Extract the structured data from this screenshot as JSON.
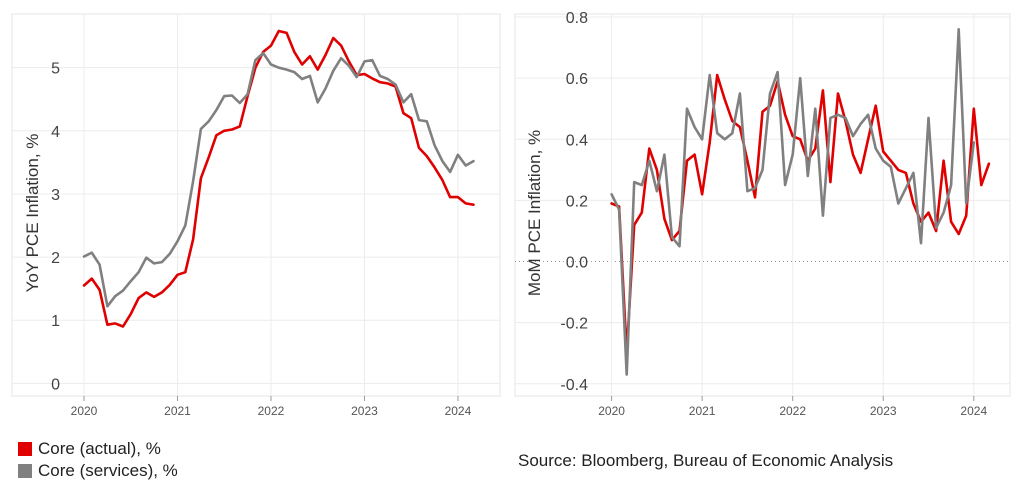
{
  "colors": {
    "actual": "#e00000",
    "services": "#808080"
  },
  "legend": [
    {
      "label": "Core (actual), %",
      "color": "#e00000"
    },
    {
      "label": "Core (services), %",
      "color": "#808080"
    }
  ],
  "source": "Source: Bloomberg, Bureau of Economic Analysis",
  "chart_data": [
    {
      "type": "line",
      "ylabel": "YoY PCE Inflation, %",
      "xlabel": "",
      "ylim": [
        -0.2,
        5.85
      ],
      "yticks": [
        0,
        1,
        2,
        3,
        4,
        5
      ],
      "xlim": [
        2019.85,
        2024.45
      ],
      "xticks": [
        "2020",
        "2021",
        "2022",
        "2023",
        "2024"
      ],
      "grid": true,
      "start": 2020.0,
      "step": 0.0833333,
      "series": [
        {
          "name": "Core (actual), %",
          "color": "#e00000",
          "values": [
            1.55,
            1.66,
            1.48,
            0.93,
            0.95,
            0.9,
            1.1,
            1.35,
            1.44,
            1.37,
            1.44,
            1.56,
            1.72,
            1.76,
            2.28,
            3.25,
            3.58,
            3.93,
            4.0,
            4.02,
            4.07,
            4.55,
            5.0,
            5.25,
            5.35,
            5.58,
            5.55,
            5.25,
            5.05,
            5.18,
            4.97,
            5.2,
            5.47,
            5.35,
            5.1,
            4.88,
            4.9,
            4.83,
            4.77,
            4.75,
            4.7,
            4.28,
            4.2,
            3.73,
            3.6,
            3.42,
            3.22,
            2.95,
            2.95,
            2.85,
            2.83
          ]
        },
        {
          "name": "Core (services), %",
          "color": "#808080",
          "values": [
            2.01,
            2.07,
            1.88,
            1.22,
            1.38,
            1.47,
            1.62,
            1.76,
            1.99,
            1.9,
            1.92,
            2.05,
            2.25,
            2.5,
            3.2,
            4.03,
            4.15,
            4.33,
            4.55,
            4.56,
            4.44,
            4.58,
            5.12,
            5.23,
            5.05,
            5.0,
            4.97,
            4.93,
            4.82,
            4.87,
            4.45,
            4.67,
            4.95,
            5.15,
            5.03,
            4.85,
            5.1,
            5.12,
            4.87,
            4.82,
            4.73,
            4.45,
            4.58,
            4.17,
            4.15,
            3.77,
            3.52,
            3.35,
            3.62,
            3.45,
            3.52
          ]
        }
      ]
    },
    {
      "type": "line",
      "ylabel": "MoM PCE Inflation, %",
      "xlabel": "",
      "ylim": [
        -0.44,
        0.81
      ],
      "yticks": [
        -0.4,
        -0.2,
        0.0,
        0.2,
        0.4,
        0.6,
        0.8
      ],
      "ytick_labels": [
        "-0.4",
        "-0.2",
        "0.0",
        "0.2",
        "0.4",
        "0.6",
        "0.8"
      ],
      "zero_line": true,
      "xlim": [
        2019.85,
        2024.4
      ],
      "xticks": [
        "2020",
        "2021",
        "2022",
        "2023",
        "2024"
      ],
      "grid": true,
      "start": 2020.0,
      "step": 0.0833333,
      "series": [
        {
          "name": "Core (actual), %",
          "color": "#e00000",
          "values": [
            0.19,
            0.18,
            -0.3,
            0.12,
            0.16,
            0.37,
            0.3,
            0.14,
            0.07,
            0.1,
            0.33,
            0.35,
            0.22,
            0.39,
            0.61,
            0.53,
            0.46,
            0.44,
            0.33,
            0.21,
            0.49,
            0.51,
            0.59,
            0.48,
            0.41,
            0.4,
            0.33,
            0.37,
            0.56,
            0.26,
            0.55,
            0.46,
            0.35,
            0.29,
            0.4,
            0.51,
            0.36,
            0.33,
            0.3,
            0.29,
            0.19,
            0.13,
            0.16,
            0.1,
            0.33,
            0.13,
            0.09,
            0.15,
            0.5,
            0.25,
            0.32
          ]
        },
        {
          "name": "Core (services), %",
          "color": "#808080",
          "values": [
            0.22,
            0.17,
            -0.37,
            0.26,
            0.25,
            0.33,
            0.23,
            0.35,
            0.08,
            0.05,
            0.5,
            0.44,
            0.4,
            0.61,
            0.42,
            0.4,
            0.42,
            0.55,
            0.23,
            0.24,
            0.3,
            0.55,
            0.62,
            0.25,
            0.35,
            0.6,
            0.28,
            0.5,
            0.15,
            0.47,
            0.48,
            0.47,
            0.41,
            0.45,
            0.48,
            0.37,
            0.33,
            0.31,
            0.19,
            0.24,
            0.29,
            0.06,
            0.47,
            0.11,
            0.16,
            0.25,
            0.76,
            0.19,
            0.39
          ]
        }
      ]
    }
  ]
}
